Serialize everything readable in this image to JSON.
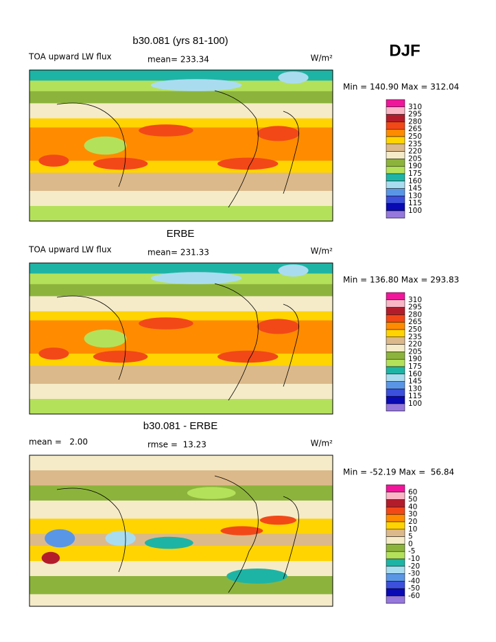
{
  "header": {
    "title": "DJF"
  },
  "panels": [
    {
      "title": "b30.081 (yrs 81-100)",
      "left_text": "TOA upward LW flux",
      "center_text": "mean= 233.34",
      "units": "W/m²",
      "range": "Min = 140.90 Max = 312.04",
      "colorbar": {
        "levels": [
          310,
          295,
          280,
          265,
          250,
          235,
          220,
          205,
          190,
          175,
          160,
          145,
          130,
          115,
          100
        ],
        "colors": [
          "#f0169b",
          "#fbb6c6",
          "#b31d2b",
          "#f24818",
          "#ff8c00",
          "#ffd400",
          "#dcb98a",
          "#f5ebc8",
          "#8cb43c",
          "#b4e15a",
          "#1eb4a5",
          "#aadcf0",
          "#5a96e6",
          "#3c50dc",
          "#0a0ab4",
          "#9678dc"
        ]
      }
    },
    {
      "title": "ERBE",
      "left_text": "TOA upward LW flux",
      "center_text": "mean= 231.33",
      "units": "W/m²",
      "range": "Min = 136.80 Max = 293.83",
      "colorbar": {
        "levels": [
          310,
          295,
          280,
          265,
          250,
          235,
          220,
          205,
          190,
          175,
          160,
          145,
          130,
          115,
          100
        ],
        "colors": [
          "#f0169b",
          "#fbb6c6",
          "#b31d2b",
          "#f24818",
          "#ff8c00",
          "#ffd400",
          "#dcb98a",
          "#f5ebc8",
          "#8cb43c",
          "#b4e15a",
          "#1eb4a5",
          "#aadcf0",
          "#5a96e6",
          "#3c50dc",
          "#0a0ab4",
          "#9678dc"
        ]
      }
    },
    {
      "title": "b30.081 - ERBE",
      "left_text": "mean =   2.00",
      "center_text": "rmse =  13.23",
      "units": "W/m²",
      "range": "Min = -52.19 Max =  56.84",
      "colorbar": {
        "levels": [
          60,
          50,
          40,
          30,
          20,
          10,
          5,
          0,
          -5,
          -10,
          -20,
          -30,
          -40,
          -50,
          -60
        ],
        "colors": [
          "#f0169b",
          "#fbb6c6",
          "#b31d2b",
          "#f24818",
          "#ff8c00",
          "#ffd400",
          "#dcb98a",
          "#f5ebc8",
          "#8cb43c",
          "#b4e15a",
          "#1eb4a5",
          "#aadcf0",
          "#5a96e6",
          "#3c50dc",
          "#0a0ab4",
          "#9678dc"
        ]
      }
    }
  ]
}
